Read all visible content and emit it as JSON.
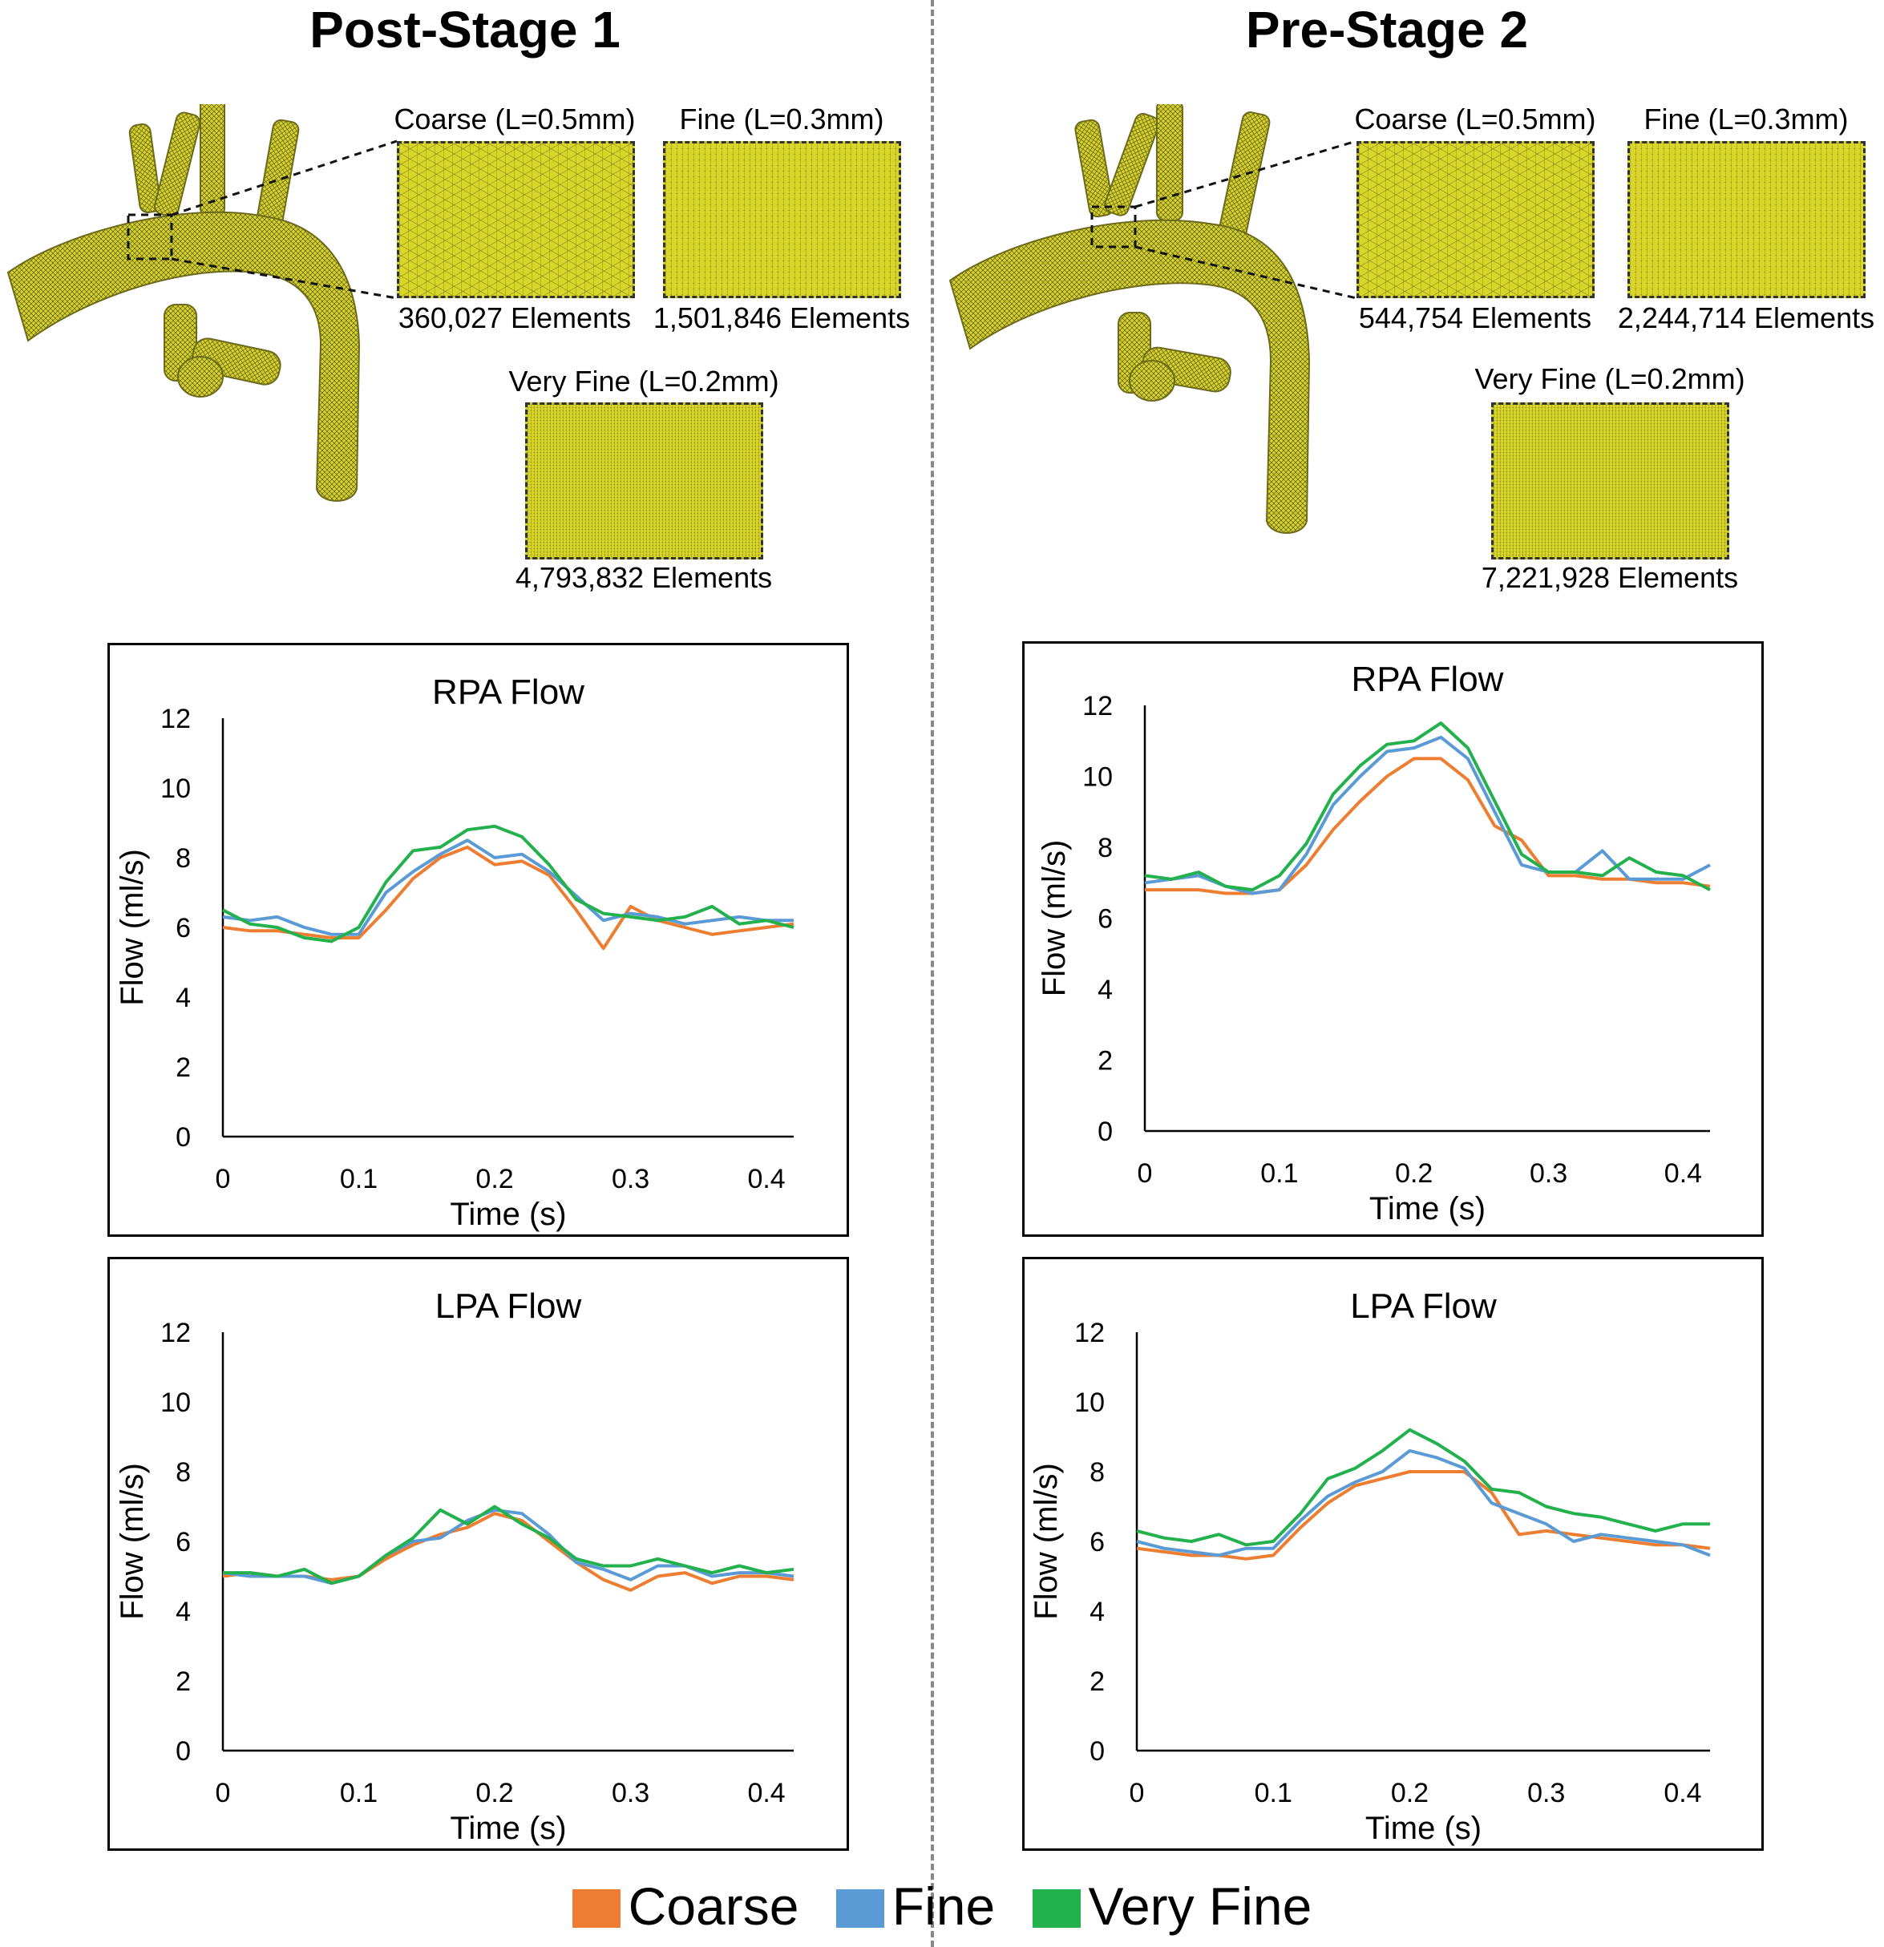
{
  "headings": {
    "left": "Post-Stage 1",
    "right": "Pre-Stage 2"
  },
  "meshes": {
    "left": [
      {
        "label": "Coarse (L=0.5mm)",
        "elements": "360,027 Elements"
      },
      {
        "label": "Fine (L=0.3mm)",
        "elements": "1,501,846 Elements"
      },
      {
        "label": "Very Fine (L=0.2mm)",
        "elements": "4,793,832 Elements"
      }
    ],
    "right": [
      {
        "label": "Coarse (L=0.5mm)",
        "elements": "544,754 Elements"
      },
      {
        "label": "Fine (L=0.3mm)",
        "elements": "2,244,714 Elements"
      },
      {
        "label": "Very Fine (L=0.2mm)",
        "elements": "7,221,928 Elements"
      }
    ]
  },
  "colors": {
    "coarse": "#ED7D31",
    "fine": "#5B9BD5",
    "very_fine": "#22B14C",
    "mesh": "#d9d62a"
  },
  "legend": [
    "Coarse",
    "Fine",
    "Very Fine"
  ],
  "chart_data": [
    {
      "type": "line",
      "title": "RPA Flow",
      "xlabel": "Time (s)",
      "ylabel": "Flow (ml/s)",
      "xlim": [
        0,
        0.42
      ],
      "ylim": [
        0,
        12
      ],
      "xticks": [
        "0",
        "0.1",
        "0.2",
        "0.3",
        "0.4"
      ],
      "yticks": [
        "0",
        "2",
        "4",
        "6",
        "8",
        "10",
        "12"
      ],
      "x": [
        0,
        0.02,
        0.04,
        0.06,
        0.08,
        0.1,
        0.12,
        0.14,
        0.16,
        0.18,
        0.2,
        0.22,
        0.24,
        0.26,
        0.28,
        0.3,
        0.32,
        0.34,
        0.36,
        0.38,
        0.4,
        0.42
      ],
      "series": [
        {
          "name": "Coarse",
          "values": [
            6.0,
            5.9,
            5.9,
            5.8,
            5.7,
            5.7,
            6.5,
            7.4,
            8.0,
            8.3,
            7.8,
            7.9,
            7.5,
            6.5,
            5.4,
            6.6,
            6.2,
            6.0,
            5.8,
            5.9,
            6.0,
            6.1
          ]
        },
        {
          "name": "Fine",
          "values": [
            6.3,
            6.2,
            6.3,
            6.0,
            5.8,
            5.8,
            7.0,
            7.6,
            8.1,
            8.5,
            8.0,
            8.1,
            7.6,
            6.9,
            6.2,
            6.4,
            6.3,
            6.1,
            6.2,
            6.3,
            6.2,
            6.2
          ]
        },
        {
          "name": "Very Fine",
          "values": [
            6.5,
            6.1,
            6.0,
            5.7,
            5.6,
            6.0,
            7.3,
            8.2,
            8.3,
            8.8,
            8.9,
            8.6,
            7.8,
            6.8,
            6.4,
            6.3,
            6.2,
            6.3,
            6.6,
            6.1,
            6.2,
            6.0
          ]
        }
      ]
    },
    {
      "type": "line",
      "title": "LPA Flow",
      "xlabel": "Time (s)",
      "ylabel": "Flow (ml/s)",
      "xlim": [
        0,
        0.42
      ],
      "ylim": [
        0,
        12
      ],
      "xticks": [
        "0",
        "0.1",
        "0.2",
        "0.3",
        "0.4"
      ],
      "yticks": [
        "0",
        "2",
        "4",
        "6",
        "8",
        "10",
        "12"
      ],
      "x": [
        0,
        0.02,
        0.04,
        0.06,
        0.08,
        0.1,
        0.12,
        0.14,
        0.16,
        0.18,
        0.2,
        0.22,
        0.24,
        0.26,
        0.28,
        0.3,
        0.32,
        0.34,
        0.36,
        0.38,
        0.4,
        0.42
      ],
      "series": [
        {
          "name": "Coarse",
          "values": [
            5.0,
            5.1,
            5.0,
            5.0,
            4.9,
            5.0,
            5.5,
            5.9,
            6.2,
            6.4,
            6.8,
            6.6,
            6.0,
            5.4,
            4.9,
            4.6,
            5.0,
            5.1,
            4.8,
            5.0,
            5.0,
            4.9
          ]
        },
        {
          "name": "Fine",
          "values": [
            5.1,
            5.0,
            5.0,
            5.0,
            4.8,
            5.0,
            5.6,
            6.0,
            6.1,
            6.6,
            6.9,
            6.8,
            6.2,
            5.4,
            5.2,
            4.9,
            5.3,
            5.3,
            5.0,
            5.1,
            5.1,
            5.0
          ]
        },
        {
          "name": "Very Fine",
          "values": [
            5.1,
            5.1,
            5.0,
            5.2,
            4.8,
            5.0,
            5.6,
            6.1,
            6.9,
            6.5,
            7.0,
            6.5,
            6.1,
            5.5,
            5.3,
            5.3,
            5.5,
            5.3,
            5.1,
            5.3,
            5.1,
            5.2
          ]
        }
      ]
    },
    {
      "type": "line",
      "title": "RPA Flow",
      "xlabel": "Time (s)",
      "ylabel": "Flow (ml/s)",
      "xlim": [
        0,
        0.42
      ],
      "ylim": [
        0,
        12
      ],
      "xticks": [
        "0",
        "0.1",
        "0.2",
        "0.3",
        "0.4"
      ],
      "yticks": [
        "0",
        "2",
        "4",
        "6",
        "8",
        "10",
        "12"
      ],
      "x": [
        0,
        0.02,
        0.04,
        0.06,
        0.08,
        0.1,
        0.12,
        0.14,
        0.16,
        0.18,
        0.2,
        0.22,
        0.24,
        0.26,
        0.28,
        0.3,
        0.32,
        0.34,
        0.36,
        0.38,
        0.4,
        0.42
      ],
      "series": [
        {
          "name": "Coarse",
          "values": [
            6.8,
            6.8,
            6.8,
            6.7,
            6.7,
            6.8,
            7.5,
            8.5,
            9.3,
            10.0,
            10.5,
            10.5,
            9.9,
            8.6,
            8.2,
            7.2,
            7.2,
            7.1,
            7.1,
            7.0,
            7.0,
            6.9
          ]
        },
        {
          "name": "Fine",
          "values": [
            7.0,
            7.1,
            7.2,
            6.9,
            6.7,
            6.8,
            7.8,
            9.2,
            10.0,
            10.7,
            10.8,
            11.1,
            10.5,
            9.0,
            7.5,
            7.3,
            7.3,
            7.9,
            7.1,
            7.1,
            7.1,
            7.5
          ]
        },
        {
          "name": "Very Fine",
          "values": [
            7.2,
            7.1,
            7.3,
            6.9,
            6.8,
            7.2,
            8.1,
            9.5,
            10.3,
            10.9,
            11.0,
            11.5,
            10.8,
            9.3,
            7.8,
            7.3,
            7.3,
            7.2,
            7.7,
            7.3,
            7.2,
            6.8
          ]
        }
      ]
    },
    {
      "type": "line",
      "title": "LPA Flow",
      "xlabel": "Time (s)",
      "ylabel": "Flow (ml/s)",
      "xlim": [
        0,
        0.42
      ],
      "ylim": [
        0,
        12
      ],
      "xticks": [
        "0",
        "0.1",
        "0.2",
        "0.3",
        "0.4"
      ],
      "yticks": [
        "0",
        "2",
        "4",
        "6",
        "8",
        "10",
        "12"
      ],
      "x": [
        0,
        0.02,
        0.04,
        0.06,
        0.08,
        0.1,
        0.12,
        0.14,
        0.16,
        0.18,
        0.2,
        0.22,
        0.24,
        0.26,
        0.28,
        0.3,
        0.32,
        0.34,
        0.36,
        0.38,
        0.4,
        0.42
      ],
      "series": [
        {
          "name": "Coarse",
          "values": [
            5.8,
            5.7,
            5.6,
            5.6,
            5.5,
            5.6,
            6.4,
            7.1,
            7.6,
            7.8,
            8.0,
            8.0,
            8.0,
            7.4,
            6.2,
            6.3,
            6.2,
            6.1,
            6.0,
            5.9,
            5.9,
            5.8
          ]
        },
        {
          "name": "Fine",
          "values": [
            6.0,
            5.8,
            5.7,
            5.6,
            5.8,
            5.8,
            6.6,
            7.3,
            7.7,
            8.0,
            8.6,
            8.4,
            8.1,
            7.1,
            6.8,
            6.5,
            6.0,
            6.2,
            6.1,
            6.0,
            5.9,
            5.6
          ]
        },
        {
          "name": "Very Fine",
          "values": [
            6.3,
            6.1,
            6.0,
            6.2,
            5.9,
            6.0,
            6.8,
            7.8,
            8.1,
            8.6,
            9.2,
            8.8,
            8.3,
            7.5,
            7.4,
            7.0,
            6.8,
            6.7,
            6.5,
            6.3,
            6.5,
            6.5
          ]
        }
      ]
    }
  ]
}
